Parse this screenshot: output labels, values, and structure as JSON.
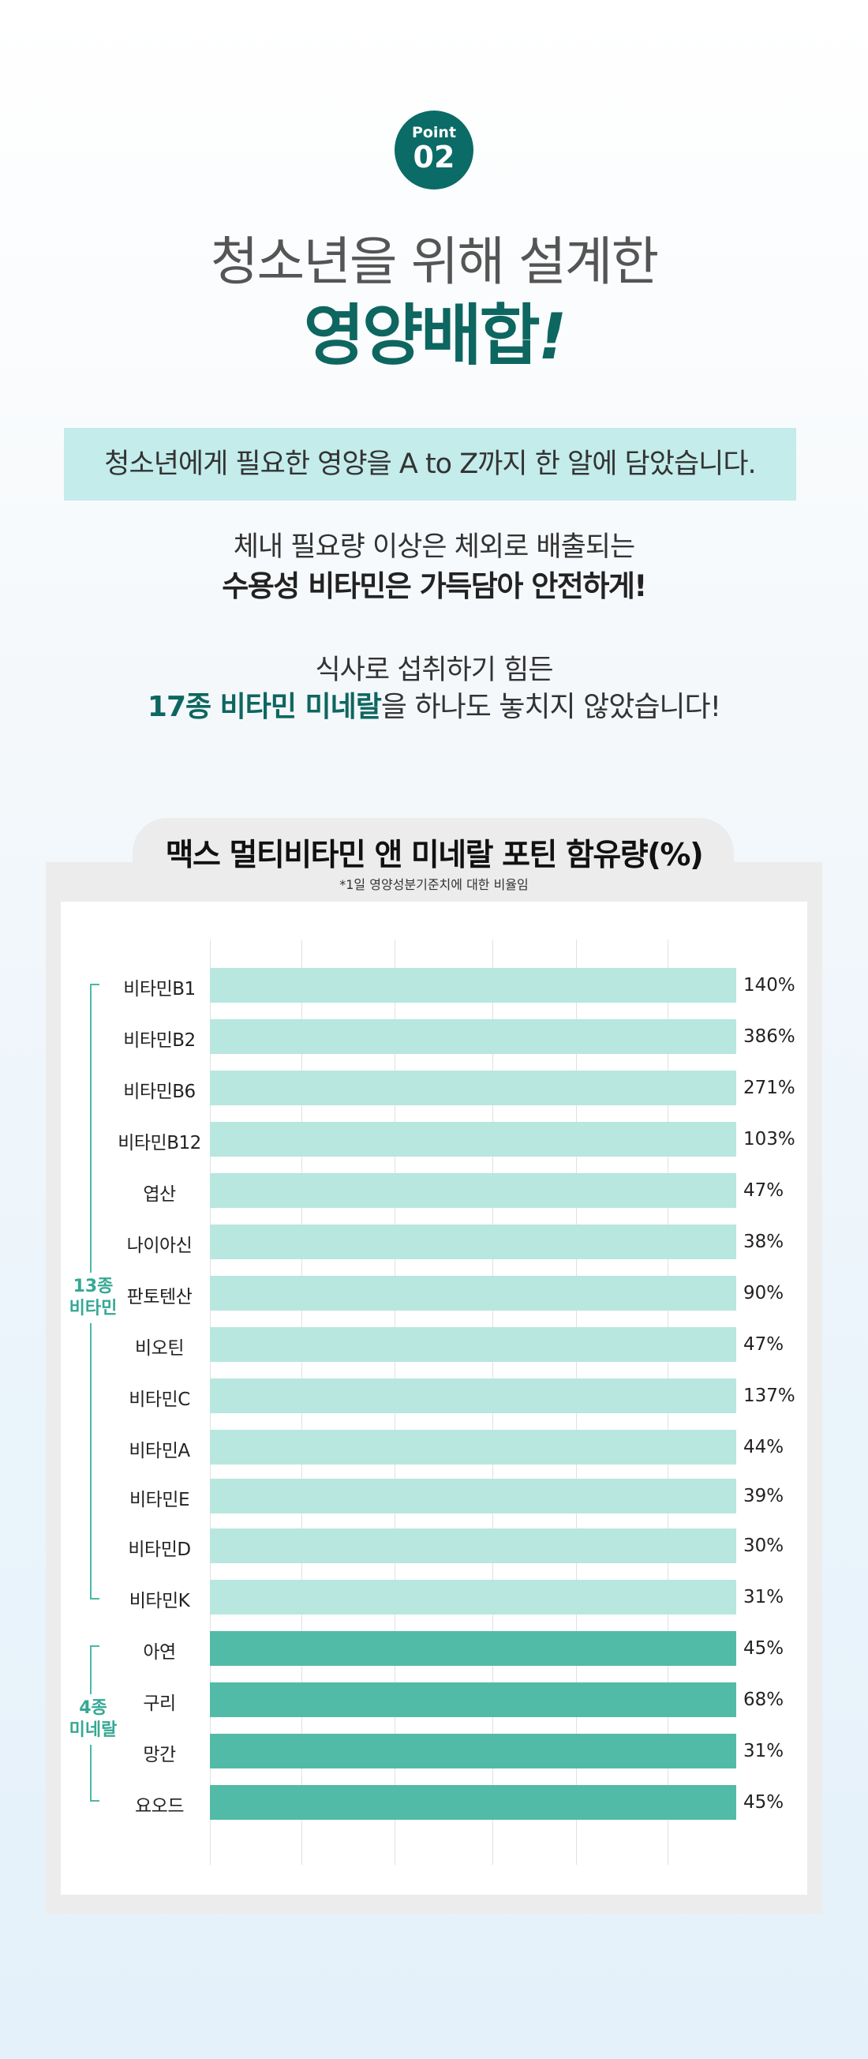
{
  "point": {
    "label": "Point",
    "number": "02"
  },
  "headline": {
    "line1": "청소년을 위해 설계한",
    "line2": "영양배합",
    "line2_mark": "!"
  },
  "mint_box": "청소년에게 필요한 영양을 A to Z까지 한 알에 담았습니다.",
  "desc": {
    "line1": "체내 필요량 이상은 체외로 배출되는",
    "line2": "수용성 비타민은 가득담아 안전하게!",
    "line3": "식사로 섭취하기 힘든",
    "line4_highlight": "17종 비타민 미네랄",
    "line4_rest": "을 하나도 놓치지 않았습니다!"
  },
  "colors": {
    "brand": "#0e6660",
    "mint_box": "#c3eceb",
    "vitamin_bar": "#b7e7df",
    "mineral_bar": "#52bba7",
    "group_label": "#35a894"
  },
  "chart_data": {
    "type": "bar",
    "title": "맥스 멀티비타민 앤 미네랄 포틴 함유량(%)",
    "note": "*1일 영양성분기준치에 대한 비율임",
    "orientation": "horizontal",
    "groups": [
      {
        "name": "13종\n비타민",
        "line1": "13종",
        "line2": "비타민",
        "start": 0,
        "end": 12
      },
      {
        "name": "4종\n미네랄",
        "line1": "4종",
        "line2": "미네랄",
        "start": 13,
        "end": 16
      }
    ],
    "items": [
      {
        "name": "비타민B1",
        "value": 140,
        "label": "140%",
        "group": "vitamin"
      },
      {
        "name": "비타민B2",
        "value": 386,
        "label": "386%",
        "group": "vitamin"
      },
      {
        "name": "비타민B6",
        "value": 271,
        "label": "271%",
        "group": "vitamin"
      },
      {
        "name": "비타민B12",
        "value": 103,
        "label": "103%",
        "group": "vitamin"
      },
      {
        "name": "엽산",
        "value": 47,
        "label": "47%",
        "group": "vitamin"
      },
      {
        "name": "나이아신",
        "value": 38,
        "label": "38%",
        "group": "vitamin"
      },
      {
        "name": "판토텐산",
        "value": 90,
        "label": "90%",
        "group": "vitamin"
      },
      {
        "name": "비오틴",
        "value": 47,
        "label": "47%",
        "group": "vitamin"
      },
      {
        "name": "비타민C",
        "value": 137,
        "label": "137%",
        "group": "vitamin"
      },
      {
        "name": "비타민A",
        "value": 44,
        "label": "44%",
        "group": "vitamin"
      },
      {
        "name": "비타민E",
        "value": 39,
        "label": "39%",
        "group": "vitamin"
      },
      {
        "name": "비타민D",
        "value": 30,
        "label": "30%",
        "group": "vitamin"
      },
      {
        "name": "비타민K",
        "value": 31,
        "label": "31%",
        "group": "vitamin"
      },
      {
        "name": "아연",
        "value": 45,
        "label": "45%",
        "group": "mineral"
      },
      {
        "name": "구리",
        "value": 68,
        "label": "68%",
        "group": "mineral"
      },
      {
        "name": "망간",
        "value": 31,
        "label": "31%",
        "group": "mineral"
      },
      {
        "name": "요오드",
        "value": 45,
        "label": "45%",
        "group": "mineral"
      }
    ]
  }
}
